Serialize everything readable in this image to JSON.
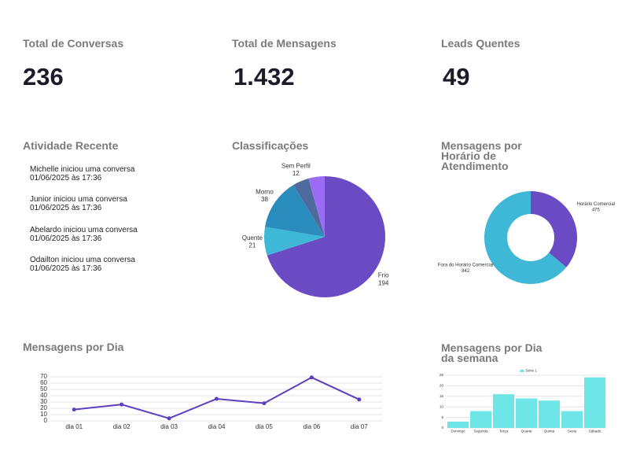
{
  "stats": [
    {
      "label": "Total de Conversas",
      "value": "236"
    },
    {
      "label": "Total de Mensagens",
      "value": "1.432"
    },
    {
      "label": "Leads Quentes",
      "value": "49"
    }
  ],
  "activity": {
    "title": "Atividade Recente",
    "items": [
      {
        "text": "Michelle iniciou uma conversa",
        "time": "01/06/2025 às 17:36"
      },
      {
        "text": "Junior iniciou uma conversa",
        "time": "01/06/2025 às 17:36"
      },
      {
        "text": "Abelardo iniciou uma conversa",
        "time": "01/06/2025 às 17:36"
      },
      {
        "text": "Odailton iniciou uma conversa",
        "time": "01/06/2025 às 17:36"
      }
    ]
  },
  "chart_data": [
    {
      "type": "pie",
      "title": "Classificações",
      "categories": [
        "Frio",
        "Quente",
        "Morno",
        "Sem Perfil",
        null
      ],
      "values": [
        194,
        21,
        38,
        12,
        12
      ],
      "colors": [
        "#6a4bc4",
        "#3fb8d8",
        "#2a8bbd",
        "#4f6a9e",
        "#9b6cf5"
      ]
    },
    {
      "type": "donut",
      "title": "Mensagens por Horário de Atendimento",
      "categories": [
        "Horário Comercial",
        "Fora do Horário Comercial"
      ],
      "values": [
        475,
        842
      ],
      "colors": [
        "#6a4bc4",
        "#3fb8d8"
      ]
    },
    {
      "type": "line",
      "title": "Mensagens por Dia",
      "categories": [
        "dia 01",
        "dia 02",
        "dia 03",
        "dia 04",
        "dia 05",
        "dia 06",
        "dia 07"
      ],
      "values": [
        18,
        26,
        4,
        35,
        28,
        69,
        34
      ],
      "color": "#5e3fc0",
      "ylim": [
        0,
        70
      ],
      "yticks": [
        0,
        10,
        20,
        30,
        40,
        50,
        60,
        70
      ],
      "grid": true
    },
    {
      "type": "bar",
      "title": "Mensagens por Dia da semana",
      "categories": [
        "Domingo",
        "Segunda",
        "Terça",
        "Quarta",
        "Quinta",
        "Sexta",
        "Sábado"
      ],
      "series": [
        {
          "name": "Série 1",
          "color": "#6ee6e8",
          "values": [
            3,
            8,
            16,
            14,
            13,
            8,
            24
          ]
        }
      ],
      "ylim": [
        0,
        25
      ],
      "yticks": [
        0,
        5,
        10,
        15,
        20,
        25
      ],
      "grid": true
    }
  ]
}
